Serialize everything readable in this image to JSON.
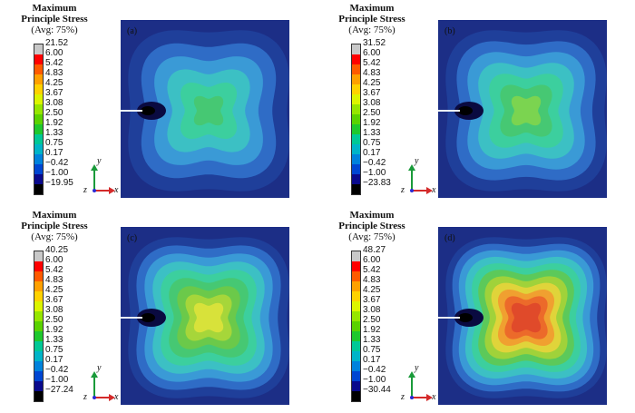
{
  "colors": [
    "#c8c8c8",
    "#ff0000",
    "#ff5a00",
    "#ffa000",
    "#ffd200",
    "#dcf500",
    "#96e600",
    "#5ad200",
    "#1ec82d",
    "#00c896",
    "#00b4c8",
    "#0082dc",
    "#0046d2",
    "#0a0a8c",
    "#000000"
  ],
  "panels": [
    {
      "id": "a",
      "label": "(a)",
      "title_line1": "Maximum",
      "title_line2": "Principle Stress",
      "title_line3": "(Avg: 75%)",
      "legend": [
        "21.52",
        "6.00",
        "5.42",
        "4.83",
        "4.25",
        "3.67",
        "3.08",
        "2.50",
        "1.92",
        "1.33",
        "0.75",
        "0.17",
        "−0.42",
        "−1.00",
        "−19.95"
      ],
      "contours": [
        "#1f3f9a",
        "#2f6cc6",
        "#3a9ad6",
        "#3cc0c4",
        "#3ccf9e",
        "#46c873"
      ],
      "axis": {
        "y": "y",
        "z": "z",
        "x": "x"
      }
    },
    {
      "id": "b",
      "label": "(b)",
      "title_line1": "Maximum",
      "title_line2": "Principle Stress",
      "title_line3": "(Avg: 75%)",
      "legend": [
        "31.52",
        "6.00",
        "5.42",
        "4.83",
        "4.25",
        "3.67",
        "3.08",
        "2.50",
        "1.92",
        "1.33",
        "0.75",
        "0.17",
        "−0.42",
        "−1.00",
        "−23.83"
      ],
      "contours": [
        "#1f3f9a",
        "#2f6cc6",
        "#3a9ad6",
        "#3cc0c4",
        "#3ccf9e",
        "#46c873",
        "#7bd450"
      ],
      "axis": {
        "y": "y",
        "z": "z",
        "x": "x"
      }
    },
    {
      "id": "c",
      "label": "(c)",
      "title_line1": "Maximum",
      "title_line2": "Principle Stress",
      "title_line3": "(Avg: 75%)",
      "legend": [
        "40.25",
        "6.00",
        "5.42",
        "4.83",
        "4.25",
        "3.67",
        "3.08",
        "2.50",
        "1.92",
        "1.33",
        "0.75",
        "0.17",
        "−0.42",
        "−1.00",
        "−27.24"
      ],
      "contours": [
        "#1f3f9a",
        "#2f6cc6",
        "#3a9ad6",
        "#3cc0c4",
        "#3ccf9e",
        "#46c873",
        "#6bc94a",
        "#a6d63a",
        "#d8e23a"
      ],
      "axis": {
        "y": "y",
        "z": "z",
        "x": "x"
      }
    },
    {
      "id": "d",
      "label": "(d)",
      "title_line1": "Maximum",
      "title_line2": "Principle Stress",
      "title_line3": "(Avg: 75%)",
      "legend": [
        "48.27",
        "6.00",
        "5.42",
        "4.83",
        "4.25",
        "3.67",
        "3.08",
        "2.50",
        "1.92",
        "1.33",
        "0.75",
        "0.17",
        "−0.42",
        "−1.00",
        "−30.44"
      ],
      "contours": [
        "#1f3f9a",
        "#2f6cc6",
        "#3a9ad6",
        "#3cc0c4",
        "#3ccf9e",
        "#5cc95a",
        "#a0d23a",
        "#e0d43a",
        "#f0a030",
        "#ec6a2a",
        "#e04a2a"
      ],
      "axis": {
        "y": "y",
        "z": "z",
        "x": "x"
      }
    }
  ]
}
